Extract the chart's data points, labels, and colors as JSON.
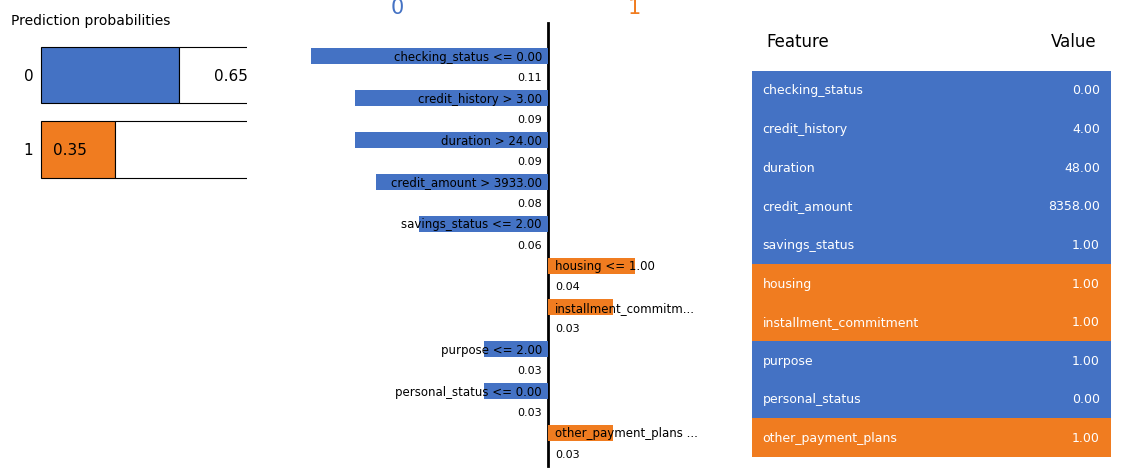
{
  "blue_color": "#4472c4",
  "orange_color": "#f07c20",
  "pred_prob_0": 0.65,
  "pred_prob_1": 0.35,
  "lime_col0_title": "0",
  "lime_col1_title": "1",
  "lime_col0_title_color": "#4472c4",
  "lime_col1_title_color": "#f07c20",
  "all_features": [
    "checking_status <= 0.00",
    "credit_history > 3.00",
    "duration > 24.00",
    "credit_amount > 3933.00",
    "savings_status <= 2.00",
    "housing <= 1.00",
    "installment_commitm...",
    "purpose <= 2.00",
    "personal_status <= 0.00",
    "other_payment_plans ..."
  ],
  "all_values": [
    -0.11,
    -0.09,
    -0.09,
    -0.08,
    -0.06,
    0.04,
    0.03,
    -0.03,
    -0.03,
    0.03
  ],
  "all_abs": [
    "0.11",
    "0.09",
    "0.09",
    "0.08",
    "0.06",
    "0.04",
    "0.03",
    "0.03",
    "0.03",
    "0.03"
  ],
  "all_colors": [
    "#4472c4",
    "#4472c4",
    "#4472c4",
    "#4472c4",
    "#4472c4",
    "#f07c20",
    "#f07c20",
    "#4472c4",
    "#4472c4",
    "#f07c20"
  ],
  "table_features": [
    "checking_status",
    "credit_history",
    "duration",
    "credit_amount",
    "savings_status",
    "housing",
    "installment_commitment",
    "purpose",
    "personal_status",
    "other_payment_plans"
  ],
  "table_values": [
    "0.00",
    "4.00",
    "48.00",
    "8358.00",
    "1.00",
    "1.00",
    "1.00",
    "1.00",
    "0.00",
    "1.00"
  ],
  "table_row_colors": [
    "#4472c4",
    "#4472c4",
    "#4472c4",
    "#4472c4",
    "#4472c4",
    "#f07c20",
    "#f07c20",
    "#4472c4",
    "#4472c4",
    "#f07c20"
  ]
}
